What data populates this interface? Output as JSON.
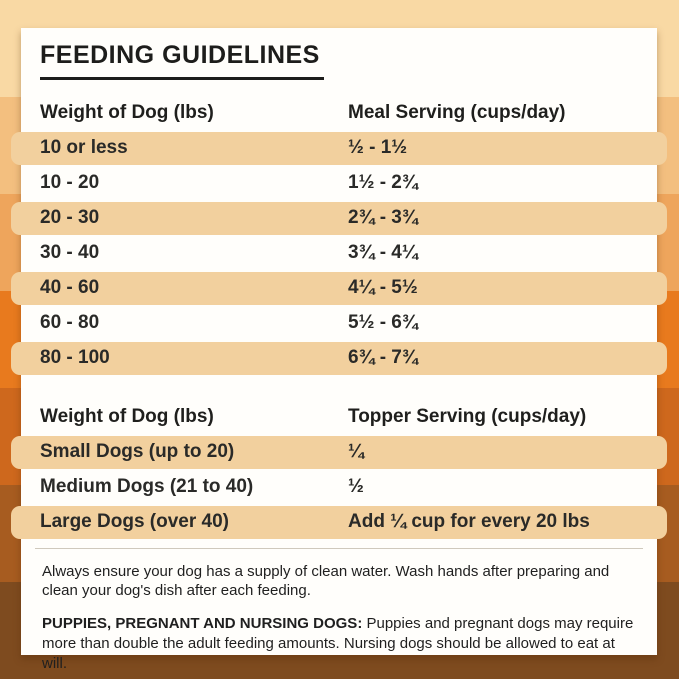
{
  "title": "FEEDING GUIDELINES",
  "meal_table": {
    "headers": [
      "Weight of Dog (lbs)",
      "Meal Serving (cups/day)"
    ],
    "rows": [
      {
        "weight": "10 or less",
        "serving": "½ - 1½"
      },
      {
        "weight": "10 - 20",
        "serving": "1½ - 2¾"
      },
      {
        "weight": "20 - 30",
        "serving": "2¾ - 3¾"
      },
      {
        "weight": "30 - 40",
        "serving": "3¾ - 4¼"
      },
      {
        "weight": "40 - 60",
        "serving": "4¼ - 5½"
      },
      {
        "weight": "60 - 80",
        "serving": "5½ - 6¾"
      },
      {
        "weight": "80 - 100",
        "serving": "6¾ - 7¾"
      }
    ]
  },
  "topper_table": {
    "headers": [
      "Weight of Dog (lbs)",
      "Topper Serving (cups/day)"
    ],
    "rows": [
      {
        "weight": "Small Dogs (up to 20)",
        "serving": "¼"
      },
      {
        "weight": "Medium Dogs (21 to 40)",
        "serving": "½"
      },
      {
        "weight": "Large Dogs (over 40)",
        "serving": "Add ¼ cup for every 20 lbs"
      }
    ]
  },
  "notes": {
    "water": "Always ensure your dog has a supply of clean water. Wash hands after preparing and clean your dog's dish after each feeding.",
    "puppies_label": "PUPPIES, PREGNANT AND NURSING DOGS:",
    "puppies_text": " Puppies and pregnant dogs may require more than double the adult feeding amounts. Nursing dogs should be allowed to eat at will."
  },
  "colors": {
    "row_highlight": "#f2d09e",
    "card_background": "#fffefb",
    "title_underline": "#1d1d1b",
    "stripes": [
      "#f9d9a4",
      "#f3bf7f",
      "#eea55c",
      "#e87a1e",
      "#ce681d",
      "#a75c20",
      "#7e4b1f"
    ]
  }
}
